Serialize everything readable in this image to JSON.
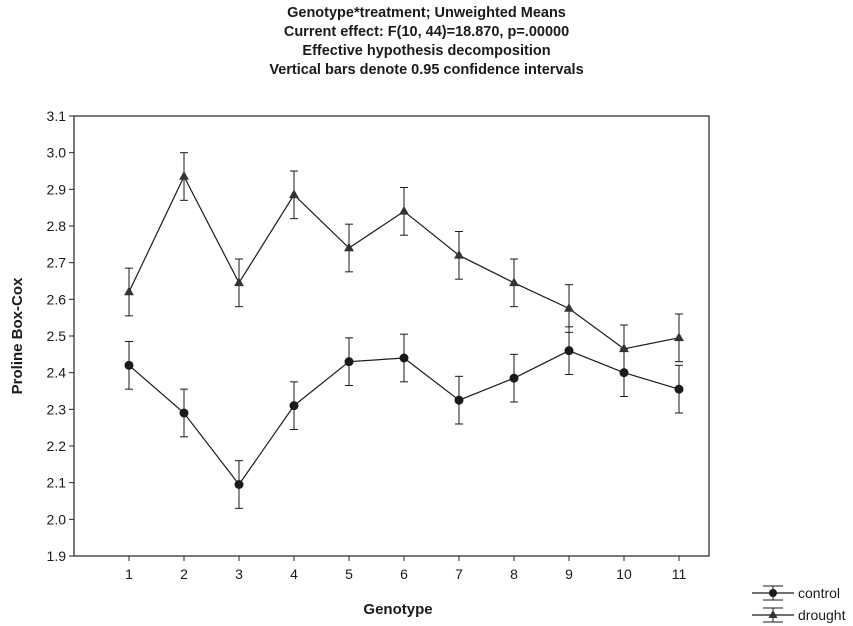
{
  "chart_data": {
    "type": "line",
    "title": [
      "Genotype*treatment; Unweighted Means",
      "Current effect: F(10, 44)=18.870, p=.00000",
      "Effective hypothesis decomposition",
      "Vertical bars denote 0.95 confidence intervals"
    ],
    "xlabel": "Genotype",
    "ylabel": "Proline Box-Cox",
    "categories": [
      "1",
      "2",
      "3",
      "4",
      "5",
      "6",
      "7",
      "8",
      "9",
      "10",
      "11"
    ],
    "ylim": [
      1.9,
      3.1
    ],
    "yticks": [
      "1.9",
      "2.0",
      "2.1",
      "2.2",
      "2.3",
      "2.4",
      "2.5",
      "2.6",
      "2.7",
      "2.8",
      "2.9",
      "3.0",
      "3.1"
    ],
    "grid": false,
    "legend_position": "bottom-right, outside plot",
    "series": [
      {
        "name": "control",
        "marker": "circle",
        "values": [
          2.42,
          2.29,
          2.095,
          2.31,
          2.43,
          2.44,
          2.325,
          2.385,
          2.46,
          2.4,
          2.355
        ],
        "ci_half_width": 0.065
      },
      {
        "name": "drought",
        "marker": "triangle",
        "values": [
          2.62,
          2.935,
          2.645,
          2.885,
          2.74,
          2.84,
          2.72,
          2.645,
          2.575,
          2.465,
          2.495
        ],
        "ci_half_width": 0.065
      }
    ]
  }
}
